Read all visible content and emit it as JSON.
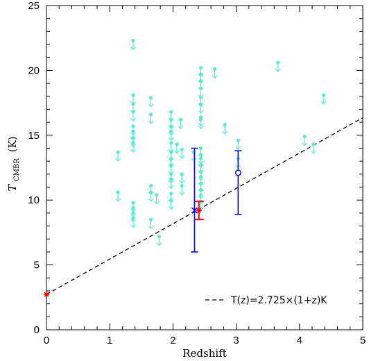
{
  "chart_data": {
    "type": "scatter",
    "title": "",
    "xlabel": "Redshift",
    "ylabel_main": "T",
    "ylabel_sub": "CMBR",
    "ylabel_unit": "(K)",
    "xlim": [
      0,
      5
    ],
    "ylim": [
      0,
      25
    ],
    "x_ticks": [
      0,
      1,
      2,
      3,
      4,
      5
    ],
    "y_ticks": [
      0,
      5,
      10,
      15,
      20,
      25
    ],
    "x_minor_step": 0.2,
    "y_minor_step": 1,
    "grid": false,
    "legend_position": "bottom-right",
    "colors": {
      "upper_limits": "#55ecd2",
      "measurement_red": "#ff0000",
      "measurement_blue": "#0000ff",
      "model_line": "#000000"
    },
    "model_line": {
      "label": "T(z)=2.725×(1+z)K",
      "style": "dashed",
      "t0": 2.725
    },
    "series": [
      {
        "kind": "upper_limits",
        "points": [
          [
            1.13,
            13.7
          ],
          [
            1.13,
            10.6
          ],
          [
            1.37,
            22.3
          ],
          [
            1.37,
            18.1
          ],
          [
            1.37,
            17.4
          ],
          [
            1.37,
            16.8
          ],
          [
            1.37,
            15.7
          ],
          [
            1.37,
            15.3
          ],
          [
            1.37,
            14.8
          ],
          [
            1.37,
            14.4
          ],
          [
            1.37,
            9.8
          ],
          [
            1.37,
            9.4
          ],
          [
            1.37,
            9.0
          ],
          [
            1.37,
            8.6
          ],
          [
            1.65,
            17.9
          ],
          [
            1.65,
            16.6
          ],
          [
            1.65,
            11.1
          ],
          [
            1.65,
            10.6
          ],
          [
            1.65,
            8.5
          ],
          [
            1.74,
            10.4
          ],
          [
            1.78,
            7.2
          ],
          [
            1.97,
            16.8
          ],
          [
            1.97,
            16.2
          ],
          [
            1.97,
            15.7
          ],
          [
            1.97,
            15.3
          ],
          [
            1.97,
            14.4
          ],
          [
            1.97,
            13.7
          ],
          [
            1.97,
            13.2
          ],
          [
            1.97,
            12.7
          ],
          [
            1.97,
            12.0
          ],
          [
            1.97,
            11.6
          ],
          [
            1.97,
            10.5
          ],
          [
            1.97,
            10.0
          ],
          [
            2.06,
            14.3
          ],
          [
            2.12,
            16.2
          ],
          [
            2.14,
            13.9
          ],
          [
            2.14,
            12.0
          ],
          [
            2.14,
            11.1
          ],
          [
            2.33,
            13.7
          ],
          [
            2.44,
            20.2
          ],
          [
            2.44,
            19.7
          ],
          [
            2.44,
            19.2
          ],
          [
            2.44,
            18.6
          ],
          [
            2.44,
            17.9
          ],
          [
            2.44,
            17.4
          ],
          [
            2.44,
            16.4
          ],
          [
            2.44,
            16.2
          ],
          [
            2.44,
            14.0
          ],
          [
            2.44,
            13.5
          ],
          [
            2.44,
            13.2
          ],
          [
            2.44,
            12.7
          ],
          [
            2.44,
            12.2
          ],
          [
            2.44,
            11.8
          ],
          [
            2.44,
            11.3
          ],
          [
            2.44,
            10.8
          ],
          [
            2.44,
            10.4
          ],
          [
            2.44,
            9.9
          ],
          [
            2.66,
            20.1
          ],
          [
            2.82,
            15.8
          ],
          [
            3.03,
            14.6
          ],
          [
            3.03,
            13.2
          ],
          [
            3.66,
            20.6
          ],
          [
            4.08,
            14.9
          ],
          [
            4.22,
            14.3
          ],
          [
            4.38,
            18.1
          ]
        ]
      },
      {
        "kind": "measurement",
        "name": "",
        "marker": "star",
        "color": "red",
        "points": [
          {
            "x": 0.0,
            "y": 2.725,
            "yerr_low": 0.0,
            "yerr_high": 0.0
          },
          {
            "x": 2.41,
            "y": 9.2,
            "yerr_low": 0.7,
            "yerr_high": 0.7
          }
        ]
      },
      {
        "kind": "measurement",
        "name": "",
        "marker": "cross",
        "color": "blue",
        "points": [
          {
            "x": 2.34,
            "y": 9.2,
            "yerr_low": 3.2,
            "yerr_high": 4.8
          }
        ]
      },
      {
        "kind": "measurement",
        "name": "",
        "marker": "open-circle",
        "color": "blue",
        "points": [
          {
            "x": 3.03,
            "y": 12.1,
            "yerr_low": 3.2,
            "yerr_high": 1.7
          }
        ]
      }
    ]
  }
}
